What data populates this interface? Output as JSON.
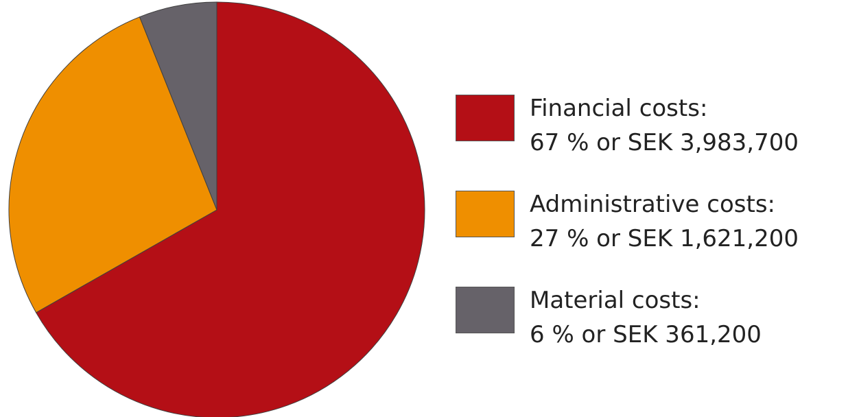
{
  "chart_data": {
    "type": "pie",
    "title": "",
    "legend_position": "right",
    "slices": [
      {
        "name": "Financial costs:",
        "percent": 67,
        "amount": "67 % or SEK 3,983,700",
        "value": 3983700,
        "color": "#b40f16"
      },
      {
        "name": "Administrative costs:",
        "percent": 27,
        "amount": "27 % or SEK 1,621,200",
        "value": 1621200,
        "color": "#ef8f00"
      },
      {
        "name": "Material costs:",
        "percent": 6,
        "amount": "6 % or SEK 361,200",
        "value": 361200,
        "color": "#666269"
      }
    ]
  }
}
